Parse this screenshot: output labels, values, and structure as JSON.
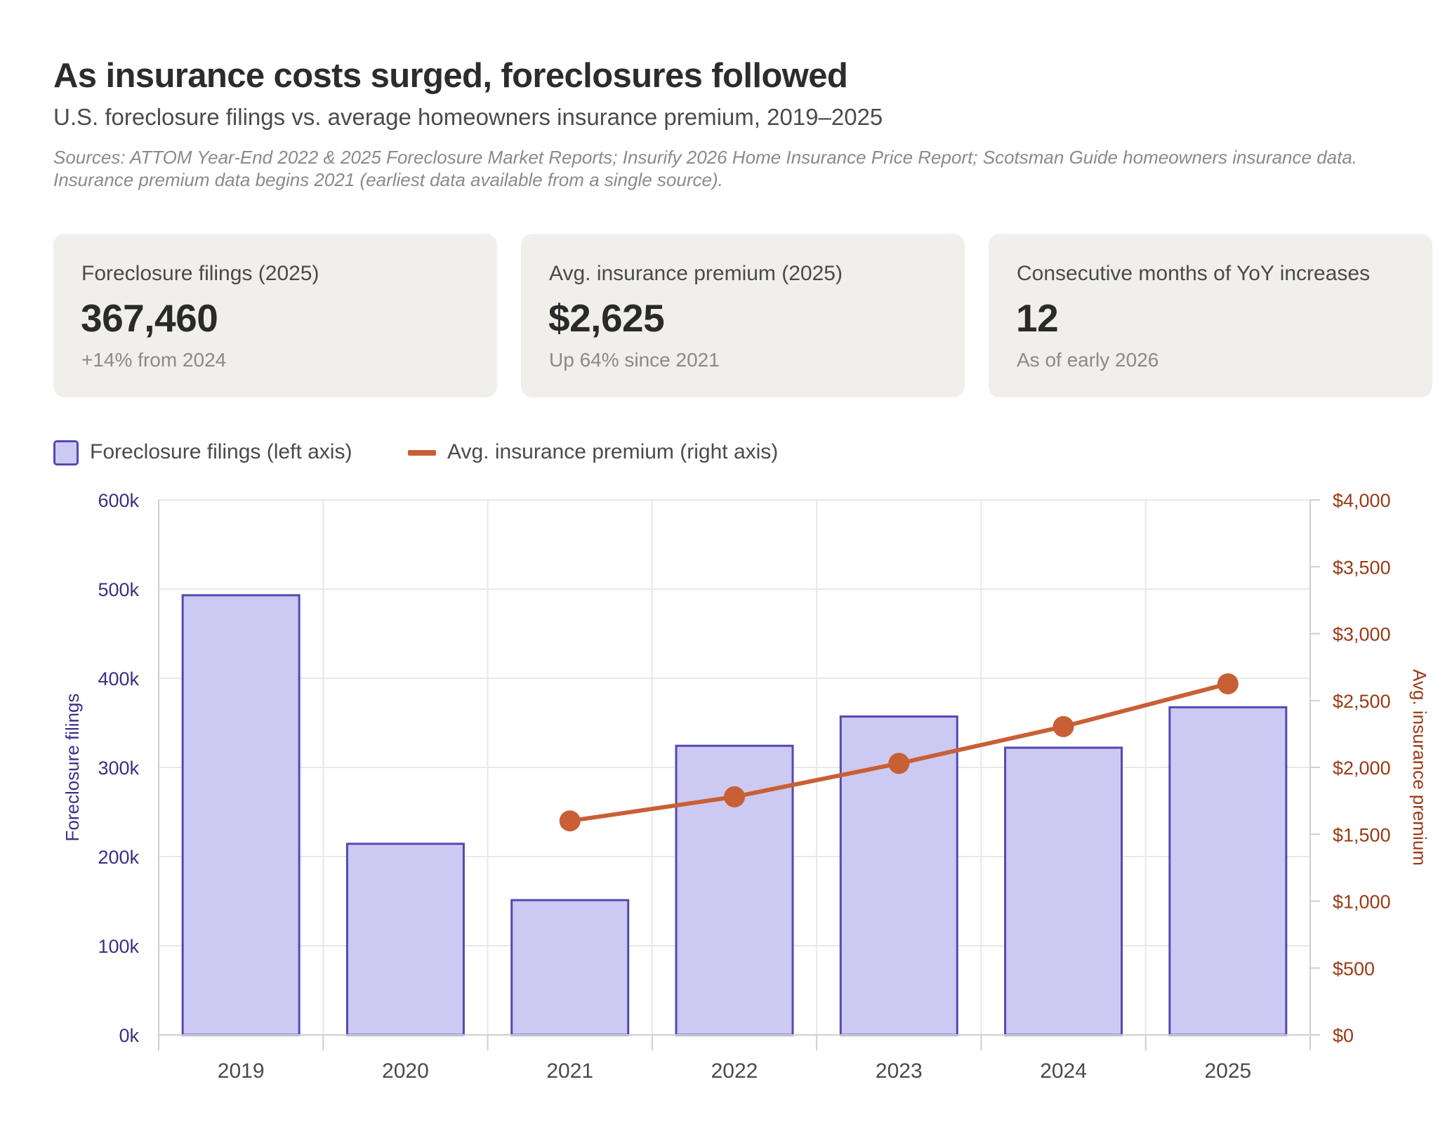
{
  "header": {
    "title": "As insurance costs surged, foreclosures followed",
    "subtitle": "U.S. foreclosure filings vs. average homeowners insurance premium, 2019–2025",
    "sources": "Sources: ATTOM Year-End 2022 & 2025 Foreclosure Market Reports; Insurify 2026 Home Insurance Price Report; Scotsman Guide homeowners insurance data. Insurance premium data begins 2021 (earliest data available from a single source)."
  },
  "cards": [
    {
      "label": "Foreclosure filings (2025)",
      "value": "367,460",
      "note": "+14% from 2024"
    },
    {
      "label": "Avg. insurance premium (2025)",
      "value": "$2,625",
      "note": "Up 64% since 2021"
    },
    {
      "label": "Consecutive months of YoY increases",
      "value": "12",
      "note": "As of early 2026"
    }
  ],
  "legend": {
    "bars": "Foreclosure filings (left axis)",
    "line": "Avg. insurance premium (right axis)"
  },
  "colors": {
    "bar_fill": "#cccaf2",
    "bar_stroke": "#5548b3",
    "line": "#c95f35",
    "left_axis_text": "#3b2f86",
    "right_axis_text": "#9a3a16",
    "grid": "#e8e8e8"
  },
  "chart_data": {
    "type": "bar",
    "categories": [
      "2019",
      "2020",
      "2021",
      "2022",
      "2023",
      "2024",
      "2025"
    ],
    "series": [
      {
        "name": "Foreclosure filings (left axis)",
        "type": "bar",
        "axis": "left",
        "values": [
          493066,
          214323,
          151153,
          324237,
          357062,
          322103,
          367460
        ]
      },
      {
        "name": "Avg. insurance premium (right axis)",
        "type": "line",
        "axis": "right",
        "values": [
          null,
          null,
          1600,
          1780,
          2030,
          2305,
          2625
        ]
      }
    ],
    "y_left": {
      "label": "Foreclosure filings",
      "min": 0,
      "max": 600000,
      "ticks": [
        0,
        100000,
        200000,
        300000,
        400000,
        500000,
        600000
      ],
      "tick_labels": [
        "0k",
        "100k",
        "200k",
        "300k",
        "400k",
        "500k",
        "600k"
      ]
    },
    "y_right": {
      "label": "Avg. insurance premium",
      "min": 0,
      "max": 4000,
      "ticks": [
        0,
        500,
        1000,
        1500,
        2000,
        2500,
        3000,
        3500,
        4000
      ],
      "tick_labels": [
        "$0",
        "$500",
        "$1,000",
        "$1,500",
        "$2,000",
        "$2,500",
        "$3,000",
        "$3,500",
        "$4,000"
      ]
    },
    "grid": true,
    "legend_position": "top-left"
  }
}
